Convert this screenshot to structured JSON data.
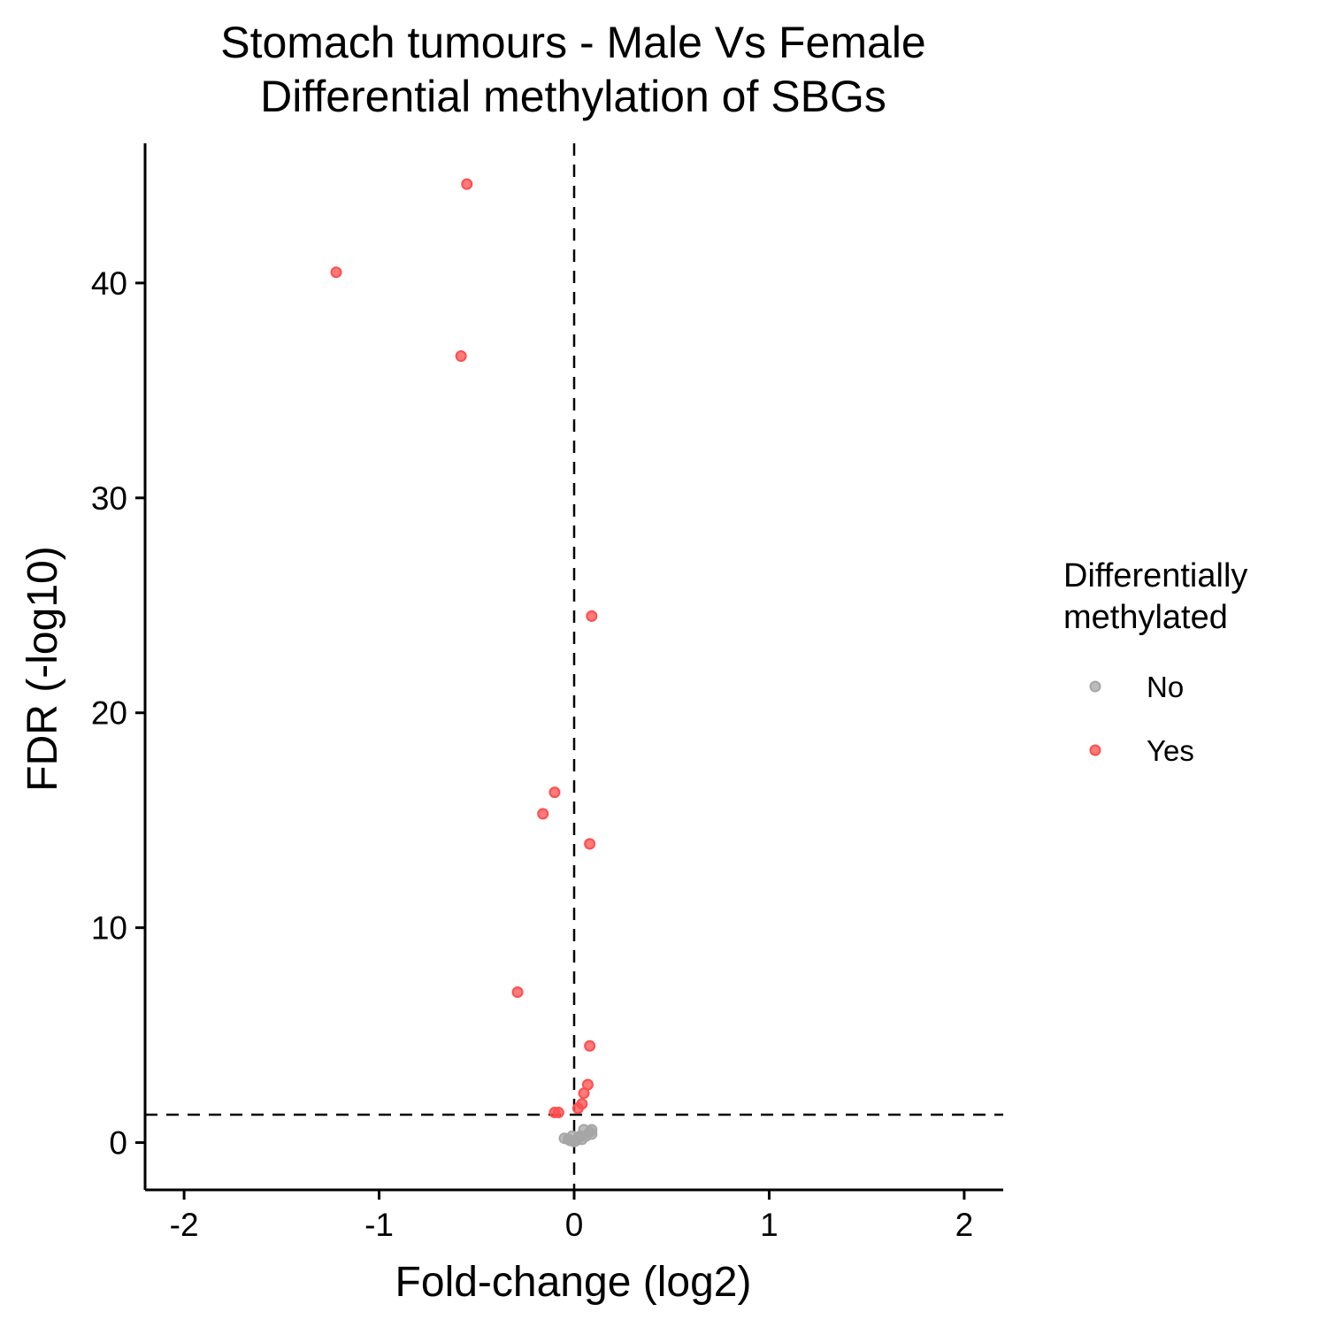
{
  "chart_data": {
    "type": "scatter",
    "title_lines": [
      "Stomach tumours - Male Vs Female",
      "Differential methylation of SBGs"
    ],
    "xlabel": "Fold-change (log2)",
    "ylabel": "FDR (-log10)",
    "xlim": [
      -2.2,
      2.2
    ],
    "ylim": [
      -2.2,
      46.5
    ],
    "x_ticks": [
      -2,
      -1,
      0,
      1,
      2
    ],
    "x_tick_labels": [
      "-2",
      "-1",
      "0",
      "1",
      "2"
    ],
    "y_ticks": [
      0,
      10,
      20,
      30,
      40
    ],
    "y_tick_labels": [
      "0",
      "10",
      "20",
      "30",
      "40"
    ],
    "grid": false,
    "reference_lines": {
      "x": 0,
      "y": 1.3
    },
    "legend": {
      "title_lines": [
        "Differentially",
        "methylated"
      ],
      "position": "right",
      "entries": [
        {
          "label": "No",
          "color": "#a6a6a6"
        },
        {
          "label": "Yes",
          "color": "#ff4d4d"
        }
      ]
    },
    "series": [
      {
        "name": "No",
        "color": "#a6a6a6",
        "points": [
          {
            "x": -0.05,
            "y": 0.2
          },
          {
            "x": -0.03,
            "y": 0.15
          },
          {
            "x": -0.02,
            "y": 0.1
          },
          {
            "x": 0.0,
            "y": 0.05
          },
          {
            "x": 0.01,
            "y": 0.1
          },
          {
            "x": 0.02,
            "y": 0.2
          },
          {
            "x": 0.03,
            "y": 0.3
          },
          {
            "x": 0.05,
            "y": 0.6
          },
          {
            "x": 0.06,
            "y": 0.3
          },
          {
            "x": 0.08,
            "y": 0.5
          },
          {
            "x": 0.09,
            "y": 0.6
          },
          {
            "x": 0.09,
            "y": 0.4
          },
          {
            "x": -0.01,
            "y": 0.3
          },
          {
            "x": 0.04,
            "y": 0.15
          }
        ]
      },
      {
        "name": "Yes",
        "color": "#ff4d4d",
        "points": [
          {
            "x": -0.55,
            "y": 44.6
          },
          {
            "x": -1.22,
            "y": 40.5
          },
          {
            "x": -0.58,
            "y": 36.6
          },
          {
            "x": 0.09,
            "y": 24.5
          },
          {
            "x": -0.1,
            "y": 16.3
          },
          {
            "x": -0.16,
            "y": 15.3
          },
          {
            "x": 0.08,
            "y": 13.9
          },
          {
            "x": -0.29,
            "y": 7.0
          },
          {
            "x": 0.08,
            "y": 4.5
          },
          {
            "x": 0.07,
            "y": 2.7
          },
          {
            "x": 0.05,
            "y": 2.3
          },
          {
            "x": 0.04,
            "y": 1.8
          },
          {
            "x": 0.02,
            "y": 1.6
          },
          {
            "x": -0.1,
            "y": 1.4
          },
          {
            "x": -0.08,
            "y": 1.4
          }
        ]
      }
    ]
  }
}
